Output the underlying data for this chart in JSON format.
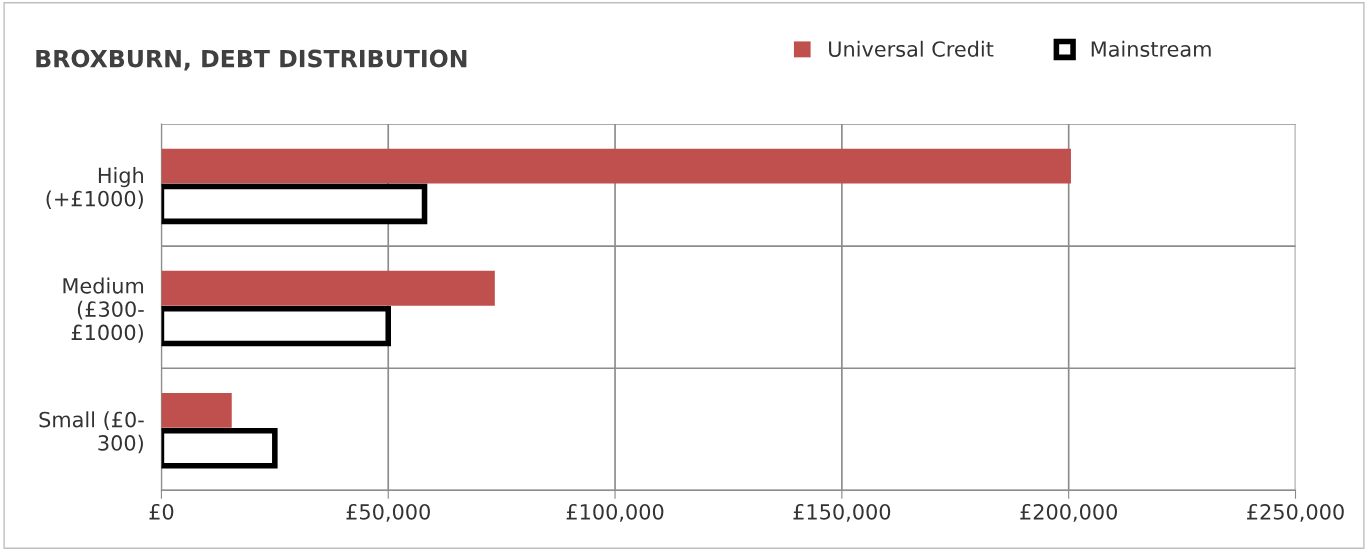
{
  "chart_data": {
    "type": "bar",
    "orientation": "horizontal",
    "title": "BROXBURN, DEBT DISTRIBUTION",
    "categories": [
      "High\n(+£1000)",
      "Medium\n(£300-\n£1000)",
      "Small (£0-\n300)"
    ],
    "series": [
      {
        "name": "Universal Credit",
        "color": "#c0504d",
        "values": [
          200500,
          73500,
          15500
        ]
      },
      {
        "name": "Mainstream",
        "color": "#ffffff",
        "values": [
          58000,
          50000,
          25000
        ]
      }
    ],
    "xlim": [
      0,
      250000
    ],
    "xticks": [
      {
        "value": 0,
        "label": "£0"
      },
      {
        "value": 50000,
        "label": "£50,000"
      },
      {
        "value": 100000,
        "label": "£100,000"
      },
      {
        "value": 150000,
        "label": "£150,000"
      },
      {
        "value": 200000,
        "label": "£200,000"
      },
      {
        "value": 250000,
        "label": "£250,000"
      }
    ],
    "grid": true,
    "legend": "top right"
  }
}
